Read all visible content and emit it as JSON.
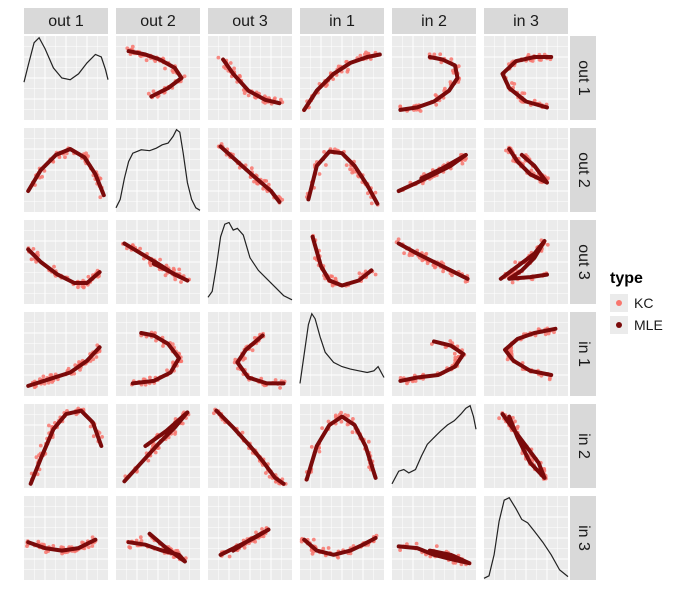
{
  "chart_data": {
    "type": "scatter",
    "variables": [
      "out 1",
      "out 2",
      "out 3",
      "in 1",
      "in 2",
      "in 3"
    ],
    "legend": {
      "title": "type",
      "placement": "right",
      "items": [
        {
          "label": "KC",
          "color": "#f8766d"
        },
        {
          "label": "MLE",
          "color": "#7a0a0a"
        }
      ]
    },
    "panel_background": "#ebebeb",
    "strip_background": "#d9d9d9",
    "grid": true,
    "diagonal": "density",
    "density_curves": [
      [
        [
          0,
          0.45
        ],
        [
          0.05,
          0.65
        ],
        [
          0.12,
          0.92
        ],
        [
          0.18,
          0.98
        ],
        [
          0.25,
          0.85
        ],
        [
          0.35,
          0.62
        ],
        [
          0.45,
          0.5
        ],
        [
          0.55,
          0.48
        ],
        [
          0.65,
          0.55
        ],
        [
          0.75,
          0.68
        ],
        [
          0.85,
          0.78
        ],
        [
          0.92,
          0.75
        ],
        [
          0.97,
          0.6
        ],
        [
          1,
          0.48
        ]
      ],
      [
        [
          0,
          0.05
        ],
        [
          0.05,
          0.15
        ],
        [
          0.1,
          0.4
        ],
        [
          0.15,
          0.6
        ],
        [
          0.2,
          0.7
        ],
        [
          0.3,
          0.74
        ],
        [
          0.4,
          0.73
        ],
        [
          0.48,
          0.76
        ],
        [
          0.55,
          0.8
        ],
        [
          0.62,
          0.82
        ],
        [
          0.68,
          0.9
        ],
        [
          0.72,
          0.98
        ],
        [
          0.76,
          0.95
        ],
        [
          0.8,
          0.7
        ],
        [
          0.85,
          0.35
        ],
        [
          0.9,
          0.15
        ],
        [
          0.95,
          0.05
        ],
        [
          1,
          0.02
        ]
      ],
      [
        [
          0,
          0.08
        ],
        [
          0.05,
          0.15
        ],
        [
          0.1,
          0.45
        ],
        [
          0.15,
          0.8
        ],
        [
          0.2,
          0.95
        ],
        [
          0.25,
          0.97
        ],
        [
          0.3,
          0.88
        ],
        [
          0.35,
          0.9
        ],
        [
          0.42,
          0.82
        ],
        [
          0.5,
          0.55
        ],
        [
          0.6,
          0.4
        ],
        [
          0.7,
          0.3
        ],
        [
          0.8,
          0.2
        ],
        [
          0.9,
          0.1
        ],
        [
          1,
          0.05
        ]
      ],
      [
        [
          0,
          0.15
        ],
        [
          0.05,
          0.5
        ],
        [
          0.1,
          0.85
        ],
        [
          0.14,
          0.98
        ],
        [
          0.18,
          0.92
        ],
        [
          0.24,
          0.7
        ],
        [
          0.3,
          0.52
        ],
        [
          0.4,
          0.4
        ],
        [
          0.5,
          0.35
        ],
        [
          0.6,
          0.32
        ],
        [
          0.7,
          0.3
        ],
        [
          0.8,
          0.28
        ],
        [
          0.88,
          0.3
        ],
        [
          0.93,
          0.35
        ],
        [
          1,
          0.22
        ]
      ],
      [
        [
          0,
          0.05
        ],
        [
          0.08,
          0.2
        ],
        [
          0.14,
          0.22
        ],
        [
          0.2,
          0.18
        ],
        [
          0.28,
          0.22
        ],
        [
          0.35,
          0.38
        ],
        [
          0.42,
          0.52
        ],
        [
          0.5,
          0.6
        ],
        [
          0.58,
          0.68
        ],
        [
          0.66,
          0.75
        ],
        [
          0.74,
          0.8
        ],
        [
          0.82,
          0.88
        ],
        [
          0.88,
          0.95
        ],
        [
          0.93,
          0.98
        ],
        [
          0.97,
          0.85
        ],
        [
          1,
          0.7
        ]
      ],
      [
        [
          0,
          0.02
        ],
        [
          0.06,
          0.05
        ],
        [
          0.12,
          0.3
        ],
        [
          0.18,
          0.7
        ],
        [
          0.24,
          0.95
        ],
        [
          0.3,
          0.98
        ],
        [
          0.38,
          0.85
        ],
        [
          0.45,
          0.72
        ],
        [
          0.52,
          0.68
        ],
        [
          0.6,
          0.58
        ],
        [
          0.7,
          0.45
        ],
        [
          0.8,
          0.3
        ],
        [
          0.9,
          0.12
        ],
        [
          1,
          0.04
        ]
      ]
    ],
    "mle_curves": [
      [
        null,
        [
          [
            0.42,
            0.28
          ],
          [
            0.62,
            0.38
          ],
          [
            0.78,
            0.5
          ],
          [
            0.7,
            0.62
          ],
          [
            0.52,
            0.72
          ],
          [
            0.35,
            0.78
          ],
          [
            0.15,
            0.82
          ]
        ],
        [
          [
            0.18,
            0.72
          ],
          [
            0.3,
            0.55
          ],
          [
            0.48,
            0.35
          ],
          [
            0.68,
            0.24
          ],
          [
            0.85,
            0.2
          ]
        ],
        [
          [
            0.05,
            0.12
          ],
          [
            0.2,
            0.35
          ],
          [
            0.4,
            0.55
          ],
          [
            0.6,
            0.68
          ],
          [
            0.8,
            0.75
          ],
          [
            0.95,
            0.78
          ]
        ],
        [
          [
            0.1,
            0.12
          ],
          [
            0.3,
            0.15
          ],
          [
            0.5,
            0.22
          ],
          [
            0.68,
            0.35
          ],
          [
            0.78,
            0.5
          ],
          [
            0.75,
            0.65
          ],
          [
            0.6,
            0.72
          ],
          [
            0.45,
            0.75
          ]
        ],
        [
          [
            0.75,
            0.15
          ],
          [
            0.5,
            0.22
          ],
          [
            0.3,
            0.38
          ],
          [
            0.22,
            0.55
          ],
          [
            0.38,
            0.7
          ],
          [
            0.6,
            0.75
          ],
          [
            0.8,
            0.75
          ]
        ]
      ],
      [
        [
          [
            0.05,
            0.25
          ],
          [
            0.2,
            0.5
          ],
          [
            0.38,
            0.68
          ],
          [
            0.55,
            0.75
          ],
          [
            0.72,
            0.65
          ],
          [
            0.85,
            0.45
          ],
          [
            0.95,
            0.2
          ]
        ],
        null,
        [
          [
            0.15,
            0.78
          ],
          [
            0.35,
            0.6
          ],
          [
            0.55,
            0.42
          ],
          [
            0.75,
            0.25
          ],
          [
            0.85,
            0.12
          ]
        ],
        [
          [
            0.1,
            0.15
          ],
          [
            0.2,
            0.55
          ],
          [
            0.35,
            0.72
          ],
          [
            0.5,
            0.7
          ],
          [
            0.65,
            0.55
          ],
          [
            0.8,
            0.32
          ],
          [
            0.92,
            0.1
          ]
        ],
        [
          [
            0.08,
            0.25
          ],
          [
            0.3,
            0.35
          ],
          [
            0.5,
            0.45
          ],
          [
            0.7,
            0.55
          ],
          [
            0.88,
            0.68
          ],
          [
            0.6,
            0.52
          ],
          [
            0.35,
            0.4
          ]
        ],
        [
          [
            0.3,
            0.75
          ],
          [
            0.4,
            0.6
          ],
          [
            0.55,
            0.45
          ],
          [
            0.75,
            0.35
          ],
          [
            0.6,
            0.55
          ],
          [
            0.45,
            0.68
          ]
        ]
      ],
      [
        [
          [
            0.05,
            0.65
          ],
          [
            0.2,
            0.5
          ],
          [
            0.4,
            0.35
          ],
          [
            0.6,
            0.25
          ],
          [
            0.75,
            0.25
          ],
          [
            0.9,
            0.38
          ]
        ],
        [
          [
            0.1,
            0.72
          ],
          [
            0.3,
            0.6
          ],
          [
            0.5,
            0.48
          ],
          [
            0.7,
            0.35
          ],
          [
            0.85,
            0.28
          ],
          [
            0.65,
            0.38
          ],
          [
            0.45,
            0.48
          ]
        ],
        null,
        [
          [
            0.15,
            0.8
          ],
          [
            0.25,
            0.45
          ],
          [
            0.35,
            0.28
          ],
          [
            0.5,
            0.22
          ],
          [
            0.7,
            0.28
          ],
          [
            0.85,
            0.4
          ]
        ],
        [
          [
            0.08,
            0.72
          ],
          [
            0.3,
            0.6
          ],
          [
            0.5,
            0.5
          ],
          [
            0.7,
            0.4
          ],
          [
            0.9,
            0.3
          ]
        ],
        [
          [
            0.2,
            0.3
          ],
          [
            0.4,
            0.45
          ],
          [
            0.6,
            0.6
          ],
          [
            0.72,
            0.75
          ],
          [
            0.6,
            0.55
          ],
          [
            0.45,
            0.4
          ],
          [
            0.3,
            0.3
          ],
          [
            0.55,
            0.32
          ],
          [
            0.75,
            0.35
          ]
        ]
      ],
      [
        [
          [
            0.05,
            0.12
          ],
          [
            0.3,
            0.2
          ],
          [
            0.55,
            0.28
          ],
          [
            0.75,
            0.42
          ],
          [
            0.9,
            0.58
          ]
        ],
        [
          [
            0.2,
            0.15
          ],
          [
            0.45,
            0.18
          ],
          [
            0.65,
            0.28
          ],
          [
            0.75,
            0.45
          ],
          [
            0.62,
            0.62
          ],
          [
            0.45,
            0.72
          ],
          [
            0.3,
            0.75
          ]
        ],
        [
          [
            0.65,
            0.72
          ],
          [
            0.45,
            0.55
          ],
          [
            0.35,
            0.4
          ],
          [
            0.48,
            0.22
          ],
          [
            0.7,
            0.15
          ],
          [
            0.9,
            0.15
          ]
        ],
        null,
        [
          [
            0.1,
            0.18
          ],
          [
            0.3,
            0.22
          ],
          [
            0.55,
            0.25
          ],
          [
            0.75,
            0.35
          ],
          [
            0.85,
            0.5
          ],
          [
            0.7,
            0.6
          ],
          [
            0.5,
            0.65
          ]
        ],
        [
          [
            0.8,
            0.25
          ],
          [
            0.55,
            0.3
          ],
          [
            0.35,
            0.42
          ],
          [
            0.25,
            0.55
          ],
          [
            0.4,
            0.68
          ],
          [
            0.6,
            0.75
          ],
          [
            0.85,
            0.8
          ]
        ]
      ],
      [
        [
          [
            0.08,
            0.05
          ],
          [
            0.2,
            0.35
          ],
          [
            0.35,
            0.7
          ],
          [
            0.5,
            0.88
          ],
          [
            0.68,
            0.92
          ],
          [
            0.82,
            0.78
          ],
          [
            0.92,
            0.5
          ]
        ],
        [
          [
            0.1,
            0.08
          ],
          [
            0.3,
            0.3
          ],
          [
            0.5,
            0.52
          ],
          [
            0.7,
            0.72
          ],
          [
            0.85,
            0.9
          ],
          [
            0.6,
            0.68
          ],
          [
            0.35,
            0.5
          ]
        ],
        [
          [
            0.1,
            0.92
          ],
          [
            0.3,
            0.72
          ],
          [
            0.5,
            0.5
          ],
          [
            0.65,
            0.32
          ],
          [
            0.8,
            0.12
          ],
          [
            0.9,
            0.05
          ]
        ],
        [
          [
            0.08,
            0.1
          ],
          [
            0.2,
            0.5
          ],
          [
            0.35,
            0.75
          ],
          [
            0.5,
            0.85
          ],
          [
            0.65,
            0.75
          ],
          [
            0.78,
            0.5
          ],
          [
            0.9,
            0.12
          ]
        ],
        null,
        [
          [
            0.22,
            0.88
          ],
          [
            0.35,
            0.7
          ],
          [
            0.5,
            0.5
          ],
          [
            0.65,
            0.3
          ],
          [
            0.72,
            0.12
          ],
          [
            0.55,
            0.3
          ],
          [
            0.4,
            0.6
          ],
          [
            0.3,
            0.85
          ]
        ]
      ],
      [
        [
          [
            0.05,
            0.45
          ],
          [
            0.25,
            0.38
          ],
          [
            0.45,
            0.35
          ],
          [
            0.65,
            0.38
          ],
          [
            0.85,
            0.48
          ]
        ],
        [
          [
            0.15,
            0.45
          ],
          [
            0.35,
            0.42
          ],
          [
            0.55,
            0.35
          ],
          [
            0.75,
            0.3
          ],
          [
            0.82,
            0.22
          ],
          [
            0.6,
            0.38
          ],
          [
            0.4,
            0.55
          ]
        ],
        [
          [
            0.15,
            0.3
          ],
          [
            0.35,
            0.4
          ],
          [
            0.55,
            0.5
          ],
          [
            0.72,
            0.6
          ],
          [
            0.5,
            0.48
          ],
          [
            0.3,
            0.35
          ]
        ],
        [
          [
            0.05,
            0.48
          ],
          [
            0.2,
            0.35
          ],
          [
            0.4,
            0.3
          ],
          [
            0.6,
            0.35
          ],
          [
            0.75,
            0.42
          ],
          [
            0.9,
            0.5
          ]
        ],
        [
          [
            0.08,
            0.4
          ],
          [
            0.3,
            0.38
          ],
          [
            0.5,
            0.3
          ],
          [
            0.7,
            0.25
          ],
          [
            0.92,
            0.2
          ],
          [
            0.7,
            0.3
          ],
          [
            0.45,
            0.35
          ]
        ],
        null
      ]
    ]
  }
}
